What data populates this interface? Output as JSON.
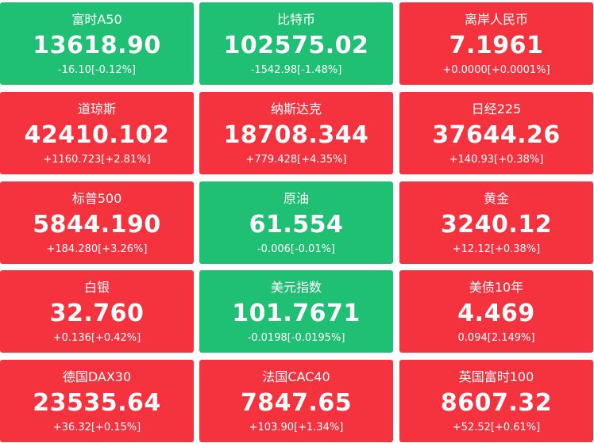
{
  "tiles": [
    {
      "name": "富时A50",
      "price": "13618.90",
      "change": "-16.10[-0.12%]",
      "color": "#1fbf74"
    },
    {
      "name": "比特币",
      "price": "102575.02",
      "change": "-1542.98[-1.48%]",
      "color": "#1fbf74"
    },
    {
      "name": "离岸人民币",
      "price": "7.1961",
      "change": "+0.0000[+0.0001%]",
      "color": "#f5333f"
    },
    {
      "name": "道琼斯",
      "price": "42410.102",
      "change": "+1160.723[+2.81%]",
      "color": "#f5333f"
    },
    {
      "name": "纳斯达克",
      "price": "18708.344",
      "change": "+779.428[+4.35%]",
      "color": "#f5333f"
    },
    {
      "name": "日经225",
      "price": "37644.26",
      "change": "+140.93[+0.38%]",
      "color": "#f5333f"
    },
    {
      "name": "标普500",
      "price": "5844.190",
      "change": "+184.280[+3.26%]",
      "color": "#f5333f"
    },
    {
      "name": "原油",
      "price": "61.554",
      "change": "-0.006[-0.01%]",
      "color": "#1fbf74"
    },
    {
      "name": "黄金",
      "price": "3240.12",
      "change": "+12.12[+0.38%]",
      "color": "#f5333f"
    },
    {
      "name": "白银",
      "price": "32.760",
      "change": "+0.136[+0.42%]",
      "color": "#f5333f"
    },
    {
      "name": "美元指数",
      "price": "101.7671",
      "change": "-0.0198[-0.0195%]",
      "color": "#1fbf74"
    },
    {
      "name": "美债10年",
      "price": "4.469",
      "change": "0.094[2.149%]",
      "color": "#f5333f"
    },
    {
      "name": "德国DAX30",
      "price": "23535.64",
      "change": "+36.32[+0.15%]",
      "color": "#f5333f"
    },
    {
      "name": "法国CAC40",
      "price": "7847.65",
      "change": "+103.90[+1.34%]",
      "color": "#f5333f"
    },
    {
      "name": "英国富时100",
      "price": "8607.32",
      "change": "+52.52[+0.61%]",
      "color": "#f5333f"
    }
  ]
}
